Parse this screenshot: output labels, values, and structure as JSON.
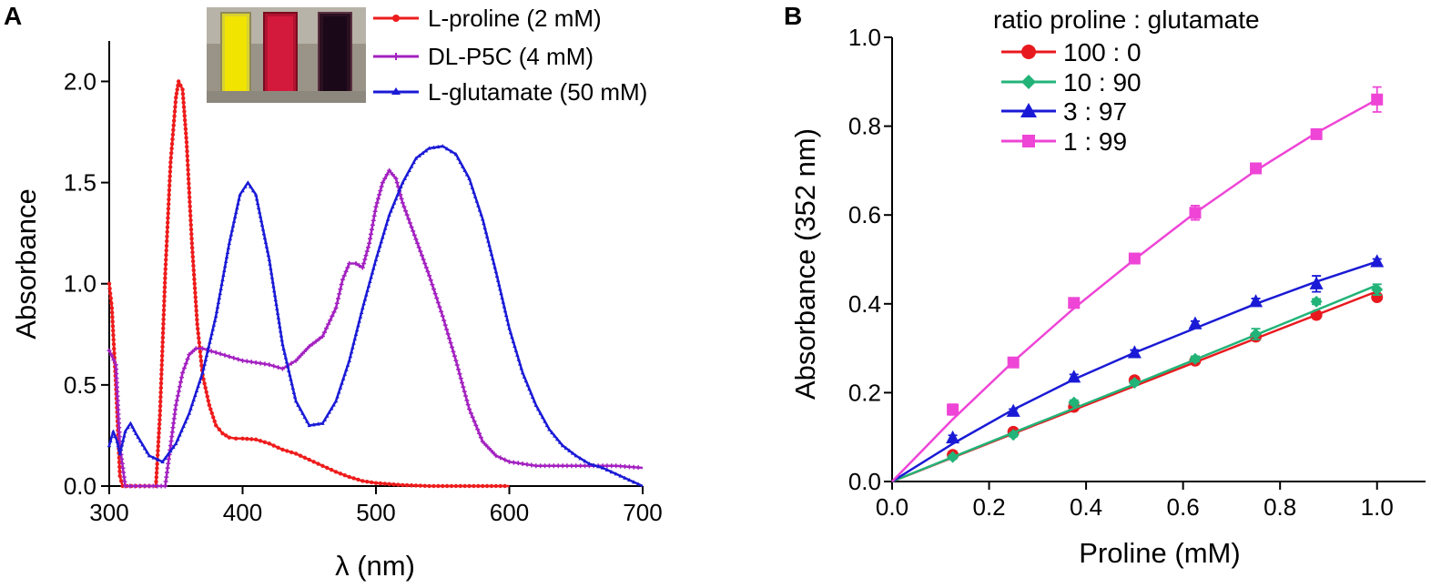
{
  "chart_data": [
    {
      "panel": "A",
      "type": "line",
      "xlabel": "λ (nm)",
      "ylabel": "Absorbance",
      "xlim": [
        300,
        700
      ],
      "ylim": [
        0,
        2.2
      ],
      "xticks": [
        "300",
        "400",
        "500",
        "600",
        "700"
      ],
      "yticks": [
        "0.0",
        "0.5",
        "1.0",
        "1.5",
        "2.0"
      ],
      "legend_position": "top-right",
      "inset": "photo of three cuvettes (yellow, red, dark purple)",
      "series": [
        {
          "name_prefix": "L",
          "name": "-proline (2 mM)",
          "color": "#ee1c1c",
          "marker": "circle",
          "x": [
            300,
            302,
            305,
            308,
            310,
            320,
            330,
            335,
            338,
            342,
            346,
            350,
            352,
            355,
            358,
            362,
            366,
            370,
            375,
            380,
            385,
            390,
            395,
            400,
            410,
            420,
            430,
            440,
            450,
            460,
            470,
            480,
            490,
            500,
            510,
            520,
            540,
            560,
            580,
            600
          ],
          "y": [
            1.0,
            0.88,
            0.5,
            0.05,
            0.0,
            0.0,
            0.0,
            0.0,
            0.35,
            1.05,
            1.6,
            1.92,
            2.0,
            1.96,
            1.7,
            1.2,
            0.8,
            0.55,
            0.4,
            0.3,
            0.26,
            0.24,
            0.235,
            0.235,
            0.23,
            0.21,
            0.18,
            0.16,
            0.13,
            0.1,
            0.07,
            0.045,
            0.025,
            0.015,
            0.01,
            0.005,
            0.0,
            0.0,
            0.0,
            0.0
          ]
        },
        {
          "name_prefix": "DL",
          "name": "-P5C (4 mM)",
          "color": "#a320c0",
          "marker": "plus",
          "x": [
            300,
            305,
            308,
            312,
            330,
            342,
            346,
            350,
            355,
            360,
            365,
            370,
            380,
            390,
            400,
            410,
            420,
            430,
            440,
            450,
            460,
            470,
            475,
            480,
            485,
            490,
            495,
            500,
            505,
            510,
            515,
            520,
            530,
            540,
            550,
            560,
            570,
            580,
            590,
            600,
            620,
            640,
            660,
            680,
            700
          ],
          "y": [
            0.67,
            0.6,
            0.2,
            0.0,
            0.0,
            0.0,
            0.2,
            0.4,
            0.56,
            0.65,
            0.68,
            0.68,
            0.66,
            0.64,
            0.62,
            0.61,
            0.6,
            0.58,
            0.62,
            0.69,
            0.74,
            0.88,
            1.02,
            1.1,
            1.1,
            1.08,
            1.2,
            1.38,
            1.5,
            1.56,
            1.52,
            1.4,
            1.22,
            1.04,
            0.84,
            0.62,
            0.38,
            0.22,
            0.15,
            0.12,
            0.1,
            0.1,
            0.1,
            0.1,
            0.09
          ]
        },
        {
          "name_prefix": "L",
          "name": "-glutamate (50 mM)",
          "color": "#1a1ad6",
          "marker": "triangle",
          "x": [
            300,
            303,
            306,
            308,
            312,
            316,
            320,
            330,
            340,
            350,
            360,
            370,
            380,
            390,
            398,
            404,
            410,
            420,
            430,
            440,
            450,
            460,
            470,
            480,
            490,
            500,
            510,
            520,
            530,
            540,
            550,
            560,
            570,
            580,
            590,
            600,
            610,
            620,
            630,
            640,
            650,
            660,
            670,
            680,
            690,
            700
          ],
          "y": [
            0.2,
            0.27,
            0.22,
            0.16,
            0.27,
            0.31,
            0.26,
            0.15,
            0.12,
            0.21,
            0.36,
            0.56,
            0.84,
            1.2,
            1.44,
            1.5,
            1.44,
            1.12,
            0.7,
            0.42,
            0.3,
            0.31,
            0.42,
            0.62,
            0.88,
            1.12,
            1.34,
            1.5,
            1.62,
            1.67,
            1.68,
            1.64,
            1.52,
            1.32,
            1.06,
            0.78,
            0.56,
            0.4,
            0.28,
            0.2,
            0.15,
            0.11,
            0.09,
            0.06,
            0.03,
            0.0
          ]
        }
      ]
    },
    {
      "panel": "B",
      "type": "scatter",
      "xlabel": "Proline (mM)",
      "ylabel": "Absorbance (352 nm)",
      "xlim": [
        0,
        1.1
      ],
      "ylim": [
        0,
        1.0
      ],
      "xticks": [
        "0.0",
        "0.2",
        "0.4",
        "0.6",
        "0.8",
        "1.0"
      ],
      "yticks": [
        "0.0",
        "0.2",
        "0.4",
        "0.6",
        "0.8",
        "1.0"
      ],
      "legend_title": "ratio proline : glutamate",
      "legend_position": "top-center",
      "x": [
        0.125,
        0.25,
        0.375,
        0.5,
        0.625,
        0.75,
        0.875,
        1.0
      ],
      "series": [
        {
          "name": "100 : 0",
          "color": "#e8191e",
          "marker": "circle",
          "values": [
            0.06,
            0.112,
            0.168,
            0.228,
            0.272,
            0.326,
            0.375,
            0.415
          ],
          "errors": [
            0.004,
            0.004,
            0.004,
            0.005,
            0.005,
            0.008,
            0.006,
            0.006
          ],
          "fit": [
            [
              0,
              0
            ],
            [
              0.25,
              0.108
            ],
            [
              0.5,
              0.215
            ],
            [
              0.75,
              0.322
            ],
            [
              1.0,
              0.428
            ]
          ]
        },
        {
          "name": "10 : 90",
          "color": "#22b378",
          "marker": "diamond",
          "values": [
            0.055,
            0.105,
            0.178,
            0.222,
            0.276,
            0.332,
            0.405,
            0.432
          ],
          "errors": [
            0.004,
            0.004,
            0.005,
            0.005,
            0.006,
            0.012,
            0.006,
            0.012
          ],
          "fit": [
            [
              0,
              0
            ],
            [
              0.25,
              0.11
            ],
            [
              0.5,
              0.219
            ],
            [
              0.75,
              0.33
            ],
            [
              1.0,
              0.442
            ]
          ]
        },
        {
          "name": "3 : 97",
          "color": "#1a1ad6",
          "marker": "triangle",
          "values": [
            0.098,
            0.158,
            0.235,
            0.29,
            0.355,
            0.405,
            0.445,
            0.495
          ],
          "errors": [
            0.006,
            0.005,
            0.006,
            0.006,
            0.006,
            0.007,
            0.018,
            0.006
          ],
          "fit": [
            [
              0,
              0
            ],
            [
              0.125,
              0.085
            ],
            [
              0.25,
              0.162
            ],
            [
              0.375,
              0.23
            ],
            [
              0.5,
              0.29
            ],
            [
              0.625,
              0.345
            ],
            [
              0.75,
              0.4
            ],
            [
              0.875,
              0.45
            ],
            [
              1.0,
              0.495
            ]
          ]
        },
        {
          "name": "1 : 99",
          "color": "#ee45d6",
          "marker": "square",
          "values": [
            0.162,
            0.268,
            0.402,
            0.502,
            0.605,
            0.705,
            0.782,
            0.86
          ],
          "errors": [
            0.012,
            0.006,
            0.006,
            0.006,
            0.016,
            0.006,
            0.006,
            0.028
          ],
          "fit": [
            [
              0,
              0
            ],
            [
              0.125,
              0.14
            ],
            [
              0.25,
              0.27
            ],
            [
              0.375,
              0.39
            ],
            [
              0.5,
              0.5
            ],
            [
              0.625,
              0.605
            ],
            [
              0.75,
              0.7
            ],
            [
              0.875,
              0.785
            ],
            [
              1.0,
              0.86
            ]
          ]
        }
      ]
    }
  ]
}
